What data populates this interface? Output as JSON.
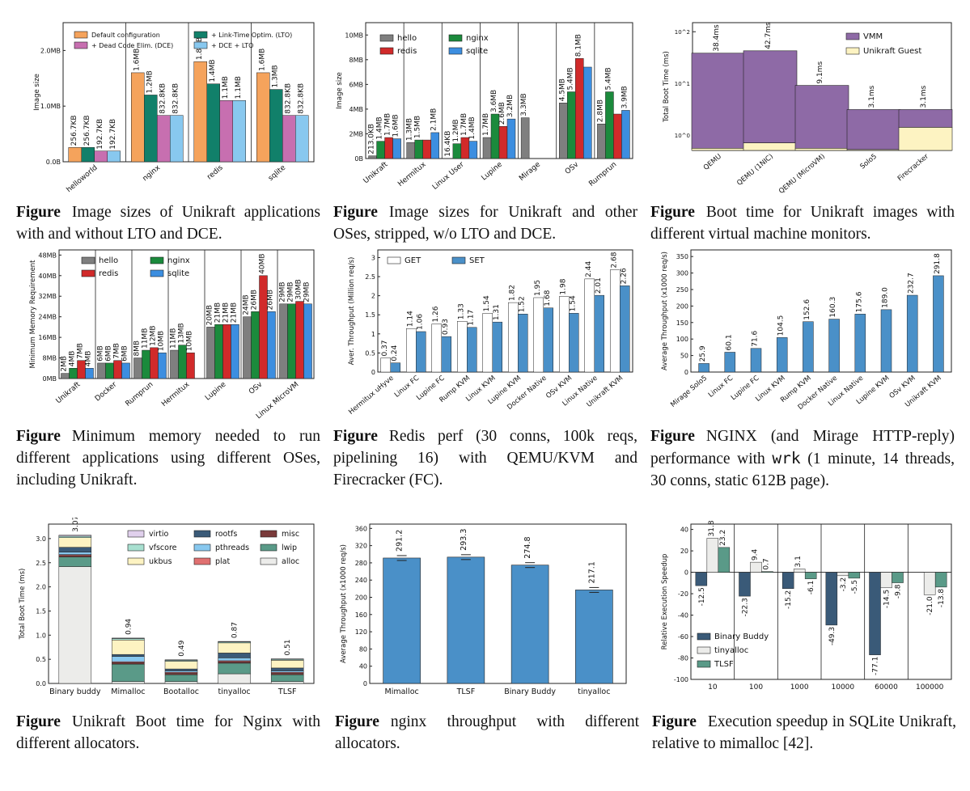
{
  "colors": {
    "orange": "#f5a35c",
    "teal": "#11806a",
    "pink": "#c76fb0",
    "lightblue": "#88c8ef",
    "gray": "#7f7f7f",
    "green": "#1b8a3c",
    "red": "#d12a2a",
    "blue": "#3c8ee0",
    "purple": "#8e6aa6",
    "cream": "#fdf3c2",
    "steel": "#4a90c8",
    "navy": "#3a5a78",
    "seagreen": "#5a9a88",
    "offwhite": "#ececea"
  },
  "charts": [
    {
      "caption": {
        "label": "Figure",
        "text": "Image sizes of Unikraft applications with and without LTO and DCE."
      },
      "chart_data": {
        "type": "bar",
        "ylabel": "Image size",
        "yticks": [
          "0.0B",
          "1.0MB",
          "2.0MB"
        ],
        "ylim": [
          0,
          2.5
        ],
        "categories": [
          "helloworld",
          "nginx",
          "redis",
          "sqlite"
        ],
        "series": [
          {
            "name": "Default configuration",
            "color": "orange",
            "values": [
              0.257,
              1.6,
              1.8,
              1.6
            ],
            "labels": [
              "256.7KB",
              "1.6MB",
              "1.8MB",
              "1.6MB"
            ]
          },
          {
            "name": "+ Link-Time Optim. (LTO)",
            "color": "teal",
            "values": [
              0.257,
              1.2,
              1.4,
              1.3
            ],
            "labels": [
              "256.7KB",
              "1.2MB",
              "1.4MB",
              "1.3MB"
            ]
          },
          {
            "name": "+ Dead Code Elim. (DCE)",
            "color": "pink",
            "values": [
              0.193,
              0.833,
              1.1,
              0.833
            ],
            "labels": [
              "192.7KB",
              "832.8KB",
              "1.1MB",
              "832.8KB"
            ]
          },
          {
            "name": "+ DCE + LTO",
            "color": "lightblue",
            "values": [
              0.193,
              0.833,
              1.1,
              0.833
            ],
            "labels": [
              "192.7KB",
              "832.8KB",
              "1.1MB",
              "832.8KB"
            ]
          }
        ]
      }
    },
    {
      "caption": {
        "label": "Figure",
        "text": "Image sizes for Unikraft and other OSes, stripped, w/o LTO and DCE."
      },
      "chart_data": {
        "type": "bar",
        "ylabel": "Image size",
        "yticks": [
          "0B",
          "2MB",
          "4MB",
          "6MB",
          "8MB",
          "10MB"
        ],
        "ylim": [
          0,
          11
        ],
        "categories": [
          "Unikraft",
          "Hermitux",
          "Linux User",
          "Lupine",
          "Mirage",
          "OSv",
          "Rumprun"
        ],
        "series": [
          {
            "name": "hello",
            "color": "gray",
            "values": [
              0.213,
              1.3,
              0.0164,
              1.7,
              3.3,
              4.5,
              2.8
            ],
            "labels": [
              "213.0KB",
              "1.3MB",
              "16.4KB",
              "1.7MB",
              "3.3MB",
              "4.5MB",
              "2.8MB"
            ]
          },
          {
            "name": "nginx",
            "color": "green",
            "values": [
              1.4,
              1.5,
              1.2,
              3.6,
              null,
              5.4,
              5.4
            ],
            "labels": [
              "1.4MB",
              "1.5MB",
              "1.2MB",
              "3.6MB",
              "",
              "5.4MB",
              "5.4MB"
            ]
          },
          {
            "name": "redis",
            "color": "red",
            "values": [
              1.7,
              1.5,
              1.7,
              2.6,
              null,
              8.1,
              3.6
            ],
            "labels": [
              "1.7MB",
              "",
              "1.7MB",
              "2.6MB",
              "",
              "8.1MB",
              ""
            ]
          },
          {
            "name": "sqlite",
            "color": "blue",
            "values": [
              1.6,
              2.1,
              1.4,
              3.2,
              null,
              7.4,
              3.9
            ],
            "labels": [
              "1.6MB",
              "2.1MB",
              "1.4MB",
              "3.2MB",
              "",
              "",
              "3.9MB"
            ]
          }
        ]
      }
    },
    {
      "caption": {
        "label": "Figure",
        "text": "Boot time for Unikraft images with different virtual machine monitors."
      },
      "chart_data": {
        "type": "bar",
        "ylabel": "Total Boot Time (ms)",
        "scale": "log",
        "yticks": [
          "10^0",
          "10^1",
          "10^2"
        ],
        "ylim": [
          0.5,
          150
        ],
        "categories": [
          "QEMU",
          "QEMU (1NIC)",
          "QEMU (MicroVM)",
          "Solo5",
          "Firecracker"
        ],
        "series": [
          {
            "name": "VMM",
            "color": "purple",
            "values": [
              38.4,
              42.7,
              9.1,
              3.1,
              3.1
            ],
            "labels": [
              "38.4ms",
              "42.7ms",
              "9.1ms",
              "3.1ms",
              "3.1ms"
            ]
          },
          {
            "name": "Unikraft Guest",
            "color": "cream",
            "values": [
              0.55,
              0.7,
              0.55,
              0.52,
              1.4
            ],
            "labels": []
          }
        ]
      }
    },
    {
      "caption": {
        "label": "Figure",
        "text": "Minimum memory needed to run different applications using different OSes, including Unikraft."
      },
      "chart_data": {
        "type": "bar",
        "ylabel": "Minimum Memory Requirement",
        "yticks": [
          "0MB",
          "8MB",
          "16MB",
          "24MB",
          "32MB",
          "40MB",
          "48MB"
        ],
        "ylim": [
          0,
          50
        ],
        "categories": [
          "Unikraft",
          "Docker",
          "Rumprun",
          "Hermitux",
          "Lupine",
          "OSv",
          "Linux MicroVM"
        ],
        "series": [
          {
            "name": "hello",
            "color": "gray",
            "values": [
              2,
              6,
              8,
              11,
              20,
              24,
              29
            ],
            "labels": [
              "2MB",
              "6MB",
              "8MB",
              "11MB",
              "20MB",
              "24MB",
              "29MB"
            ]
          },
          {
            "name": "nginx",
            "color": "green",
            "values": [
              4,
              6,
              11,
              13,
              21,
              26,
              29
            ],
            "labels": [
              "4MB",
              "6MB",
              "11MB",
              "13MB",
              "21MB",
              "26MB",
              "29MB"
            ]
          },
          {
            "name": "redis",
            "color": "red",
            "values": [
              7,
              7,
              12,
              10,
              21,
              40,
              30
            ],
            "labels": [
              "7MB",
              "7MB",
              "12MB",
              "10MB",
              "21MB",
              "40MB",
              "30MB"
            ]
          },
          {
            "name": "sqlite",
            "color": "blue",
            "values": [
              4,
              6,
              10,
              null,
              21,
              26,
              29
            ],
            "labels": [
              "4MB",
              "6MB",
              "10MB",
              "",
              "21MB",
              "26MB",
              "29MB"
            ]
          }
        ]
      }
    },
    {
      "caption": {
        "label": "Figure",
        "text": "Redis perf (30 conns, 100k reqs, pipelining 16) with QEMU/KVM and Firecracker (FC)."
      },
      "chart_data": {
        "type": "bar",
        "ylabel": "Aver. Throughput (Million req/s)",
        "yticks": [
          "0",
          "0.5",
          "1",
          "1.5",
          "2",
          "2.5",
          "3"
        ],
        "ylim": [
          0,
          3.2
        ],
        "categories": [
          "Hermitux uHyve",
          "Linux FC",
          "Lupine FC",
          "Rump KVM",
          "Linux KVM",
          "Lupine KVM",
          "Docker Native",
          "OSv KVM",
          "Linux Native",
          "Unikraft KVM"
        ],
        "series": [
          {
            "name": "GET",
            "color": "white",
            "values": [
              0.37,
              1.14,
              1.26,
              1.33,
              1.54,
              1.82,
              1.95,
              1.98,
              2.44,
              2.68
            ],
            "labels": [
              "0.37",
              "1.14",
              "1.26",
              "1.33",
              "1.54",
              "1.82",
              "1.95",
              "1.98",
              "2.44",
              "2.68"
            ]
          },
          {
            "name": "SET",
            "color": "steel",
            "values": [
              0.24,
              1.06,
              0.93,
              1.17,
              1.31,
              1.52,
              1.68,
              1.54,
              2.01,
              2.26
            ],
            "labels": [
              "0.24",
              "1.06",
              "0.93",
              "1.17",
              "1.31",
              "1.52",
              "1.68",
              "1.54",
              "2.01",
              "2.26"
            ]
          }
        ]
      }
    },
    {
      "caption": {
        "label": "Figure",
        "text_before": "NGINX (and Mirage HTTP-reply) performance with ",
        "code": "wrk",
        "text_after": " (1 minute, 14 threads, 30 conns, static 612B page)."
      },
      "chart_data": {
        "type": "bar",
        "ylabel": "Average Throughput (x1000 req/s)",
        "yticks": [
          "0",
          "50",
          "100",
          "150",
          "200",
          "250",
          "300",
          "350"
        ],
        "ylim": [
          0,
          370
        ],
        "categories": [
          "Mirage Solo5",
          "Linux FC",
          "Lupine FC",
          "Linux KVM",
          "Rump KVM",
          "Docker Native",
          "Linux Native",
          "Lupine KVM",
          "OSv KVM",
          "Unikraft KVM"
        ],
        "series": [
          {
            "name": "",
            "color": "steel",
            "values": [
              25.9,
              60.1,
              71.6,
              104.5,
              152.6,
              160.3,
              175.6,
              189.0,
              232.7,
              291.8
            ],
            "labels": [
              "25.9",
              "60.1",
              "71.6",
              "104.5",
              "152.6",
              "160.3",
              "175.6",
              "189.0",
              "232.7",
              "291.8"
            ]
          }
        ]
      }
    },
    {
      "caption": {
        "label": "Figure",
        "text": "Unikraft Boot time for Nginx with different allocators."
      },
      "chart_data": {
        "type": "bar",
        "stacked": true,
        "ylabel": "Total Boot Time (ms)",
        "yticks": [
          "0.0",
          "0.5",
          "1.0",
          "1.5",
          "2.0",
          "2.5",
          "3.0"
        ],
        "ylim": [
          0,
          3.3
        ],
        "categories": [
          "Binary buddy",
          "Mimalloc",
          "Bootalloc",
          "tinyalloc",
          "TLSF"
        ],
        "totals": [
          "3.07",
          "0.94",
          "0.49",
          "0.87",
          "0.51"
        ],
        "legend": [
          "virtio",
          "vfscore",
          "ukbus",
          "rootfs",
          "pthreads",
          "plat",
          "misc",
          "lwip",
          "alloc"
        ],
        "series": [
          {
            "name": "alloc",
            "color": "offwhite",
            "values": [
              2.42,
              0.04,
              0.04,
              0.2,
              0.04
            ]
          },
          {
            "name": "lwip",
            "color": "seagreen",
            "values": [
              0.2,
              0.36,
              0.14,
              0.22,
              0.14
            ]
          },
          {
            "name": "misc",
            "color": "#7a3a3a",
            "values": [
              0.03,
              0.03,
              0.03,
              0.03,
              0.03
            ]
          },
          {
            "name": "plat",
            "color": "#e07070",
            "values": [
              0.02,
              0.02,
              0.02,
              0.02,
              0.02
            ]
          },
          {
            "name": "pthreads",
            "color": "lightblue",
            "values": [
              0.05,
              0.11,
              0.03,
              0.06,
              0.03
            ]
          },
          {
            "name": "rootfs",
            "color": "navy",
            "values": [
              0.1,
              0.04,
              0.04,
              0.1,
              0.06
            ]
          },
          {
            "name": "ukbus",
            "color": "cream",
            "values": [
              0.2,
              0.3,
              0.16,
              0.21,
              0.16
            ]
          },
          {
            "name": "vfscore",
            "color": "#a8e0d0",
            "values": [
              0.03,
              0.03,
              0.02,
              0.02,
              0.02
            ]
          },
          {
            "name": "virtio",
            "color": "#e0d0ec",
            "values": [
              0.02,
              0.01,
              0.01,
              0.01,
              0.01
            ]
          }
        ]
      }
    },
    {
      "caption": {
        "label": "Figure",
        "text": "nginx throughput with different allocators."
      },
      "chart_data": {
        "type": "bar",
        "ylabel": "Average Throughput (x1000 req/s)",
        "yticks": [
          "0",
          "40",
          "80",
          "120",
          "160",
          "200",
          "240",
          "280",
          "320",
          "360"
        ],
        "ylim": [
          0,
          370
        ],
        "categories": [
          "Mimalloc",
          "TLSF",
          "Binary Buddy",
          "tinyalloc"
        ],
        "series": [
          {
            "name": "",
            "color": "steel",
            "values": [
              291.2,
              293.3,
              274.8,
              217.1
            ],
            "labels": [
              "291.2",
              "293.3",
              "274.8",
              "217.1"
            ]
          }
        ]
      }
    },
    {
      "caption": {
        "label": "Figure",
        "text": "Execution speedup in SQLite Unikraft, relative to mimalloc [42]."
      },
      "chart_data": {
        "type": "bar",
        "ylabel": "Relative Execution Speedup",
        "yticks": [
          "-100",
          "-80",
          "-60",
          "-40",
          "-20",
          "0",
          "20",
          "40"
        ],
        "ylim": [
          -100,
          45
        ],
        "categories": [
          "10",
          "100",
          "1000",
          "10000",
          "60000",
          "100000"
        ],
        "series": [
          {
            "name": "Binary Buddy",
            "color": "navy",
            "values": [
              -12.5,
              -22.3,
              -15.2,
              -49.3,
              -77.1,
              null
            ],
            "labels": [
              "-12.5",
              "-22.3",
              "-15.2",
              "-49.3",
              "-77.1",
              ""
            ]
          },
          {
            "name": "tinyalloc",
            "color": "offwhite",
            "values": [
              31.8,
              9.4,
              3.1,
              -3.2,
              -14.5,
              -21.0
            ],
            "labels": [
              "31.8",
              "9.4",
              "3.1",
              "-3.2",
              "-14.5",
              "-21.0"
            ]
          },
          {
            "name": "TLSF",
            "color": "seagreen",
            "values": [
              23.2,
              0.7,
              -6.1,
              -5.5,
              -9.8,
              -13.8
            ],
            "labels": [
              "23.2",
              "0.7",
              "-6.1",
              "-5.5",
              "-9.8",
              "-13.8"
            ]
          }
        ]
      }
    }
  ]
}
